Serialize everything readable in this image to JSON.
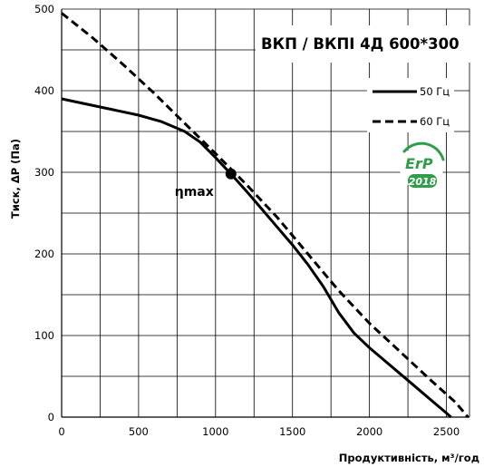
{
  "chart_data": {
    "type": "line",
    "title": "ВКП / ВКПІ 4Д 600*300",
    "xlabel": "Продуктивність, м³/год",
    "ylabel": "Тиск, ΔP (Па)",
    "xlim": [
      0,
      2650
    ],
    "ylim": [
      0,
      500
    ],
    "x_ticks": [
      0,
      500,
      1000,
      1500,
      2000,
      2500
    ],
    "y_ticks": [
      0,
      100,
      200,
      300,
      400,
      500
    ],
    "grid": true,
    "legend_position": "top-right",
    "series": [
      {
        "name": "50 Гц",
        "style": "solid",
        "color": "#000000",
        "x": [
          0,
          250,
          500,
          650,
          800,
          900,
          1000,
          1100,
          1200,
          1300,
          1400,
          1500,
          1600,
          1700,
          1800,
          1900,
          2000,
          2100,
          2200,
          2300,
          2400,
          2500,
          2530
        ],
        "y": [
          390,
          380,
          370,
          362,
          350,
          337,
          318,
          298,
          277,
          255,
          233,
          211,
          187,
          160,
          128,
          103,
          85,
          69,
          53,
          37,
          21,
          5,
          0
        ]
      },
      {
        "name": "60 Гц",
        "style": "dashed",
        "color": "#000000",
        "x": [
          0,
          200,
          400,
          600,
          800,
          1000,
          1200,
          1400,
          1600,
          1800,
          2000,
          2200,
          2400,
          2560,
          2640
        ],
        "y": [
          495,
          465,
          432,
          397,
          360,
          323,
          285,
          245,
          200,
          155,
          115,
          80,
          45,
          18,
          0
        ]
      }
    ],
    "annotations": [
      {
        "text": "ηmax",
        "x": 1100,
        "y": 298
      }
    ]
  },
  "badge": {
    "text": "ErP",
    "year": "2018",
    "color": "#2f9e48"
  }
}
